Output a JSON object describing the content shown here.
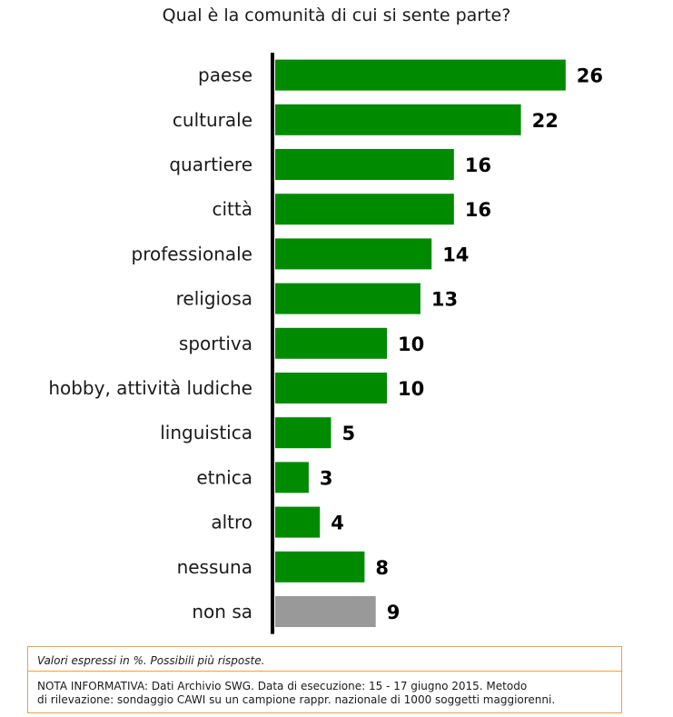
{
  "chart_data": {
    "type": "bar",
    "orientation": "horizontal",
    "title": "Qual è la comunità di cui si sente parte?",
    "categories": [
      "paese",
      "culturale",
      "quartiere",
      "città",
      "professionale",
      "religiosa",
      "sportiva",
      "hobby, attività ludiche",
      "linguistica",
      "etnica",
      "altro",
      "nessuna",
      "non sa"
    ],
    "values": [
      26,
      22,
      16,
      16,
      14,
      13,
      10,
      10,
      5,
      3,
      4,
      8,
      9
    ],
    "bar_colors": [
      "#008a00",
      "#008a00",
      "#008a00",
      "#008a00",
      "#008a00",
      "#008a00",
      "#008a00",
      "#008a00",
      "#008a00",
      "#008a00",
      "#008a00",
      "#008a00",
      "#999999"
    ],
    "xlim": [
      0,
      30
    ],
    "grid": false,
    "data_labels": true
  },
  "notes": {
    "unit_note": "Valori espressi in %. Possibili più risposte.",
    "info_label": "NOTA INFORMATIVA:",
    "info_text_line1": "Dati Archivio SWG. Data di esecuzione: 15 - 17 giugno 2015. Metodo",
    "info_text_line2": "di rilevazione: sondaggio CAWI su un campione rappr. nazionale di 1000 soggetti maggiorenni."
  },
  "colors": {
    "accent": "#008a00",
    "neutral_bar": "#999999",
    "note_border": "#f0a040"
  }
}
